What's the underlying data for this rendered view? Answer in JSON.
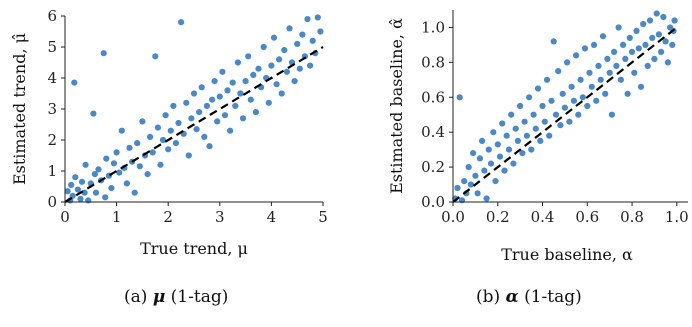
{
  "captions": {
    "a": {
      "tag": "(a)",
      "symbol": "μ",
      "rest": "(1-tag)"
    },
    "b": {
      "tag": "(b)",
      "symbol": "α",
      "rest": "(1-tag)"
    }
  },
  "chart_data": [
    {
      "type": "scatter",
      "xlabel": "True trend, μ",
      "ylabel": "Estimated trend, μ̂",
      "xlim": [
        0,
        5
      ],
      "ylim": [
        0,
        6
      ],
      "xticks": [
        "0",
        "1",
        "2",
        "3",
        "4",
        "5"
      ],
      "yticks": [
        "0",
        "1",
        "2",
        "3",
        "4",
        "5",
        "6"
      ],
      "reference_line": {
        "style": "dashed",
        "color": "#000000",
        "from": [
          0,
          0
        ],
        "to": [
          5,
          5
        ]
      },
      "point_color": "#3b7fc1",
      "series": [
        {
          "points": [
            [
              0.05,
              0.35
            ],
            [
              0.1,
              0.05
            ],
            [
              0.12,
              0.55
            ],
            [
              0.15,
              0.2
            ],
            [
              0.18,
              3.85
            ],
            [
              0.2,
              0.8
            ],
            [
              0.25,
              0.4
            ],
            [
              0.3,
              0.1
            ],
            [
              0.33,
              0.65
            ],
            [
              0.38,
              0.3
            ],
            [
              0.4,
              1.2
            ],
            [
              0.45,
              0.05
            ],
            [
              0.5,
              0.6
            ],
            [
              0.55,
              2.85
            ],
            [
              0.58,
              0.9
            ],
            [
              0.6,
              0.3
            ],
            [
              0.65,
              1.05
            ],
            [
              0.7,
              0.7
            ],
            [
              0.75,
              4.8
            ],
            [
              0.78,
              0.15
            ],
            [
              0.8,
              1.4
            ],
            [
              0.85,
              0.85
            ],
            [
              0.9,
              0.45
            ],
            [
              0.95,
              1.25
            ],
            [
              1.0,
              1.6
            ],
            [
              1.05,
              0.95
            ],
            [
              1.1,
              2.3
            ],
            [
              1.15,
              1.1
            ],
            [
              1.2,
              0.6
            ],
            [
              1.25,
              1.75
            ],
            [
              1.3,
              1.3
            ],
            [
              1.35,
              0.3
            ],
            [
              1.4,
              1.9
            ],
            [
              1.45,
              1.15
            ],
            [
              1.5,
              2.6
            ],
            [
              1.55,
              1.5
            ],
            [
              1.6,
              0.9
            ],
            [
              1.65,
              2.1
            ],
            [
              1.7,
              1.6
            ],
            [
              1.75,
              4.7
            ],
            [
              1.8,
              2.4
            ],
            [
              1.85,
              1.2
            ],
            [
              1.9,
              2.0
            ],
            [
              1.95,
              2.8
            ],
            [
              2.0,
              1.7
            ],
            [
              2.05,
              2.3
            ],
            [
              2.1,
              3.1
            ],
            [
              2.15,
              1.9
            ],
            [
              2.2,
              2.55
            ],
            [
              2.25,
              5.8
            ],
            [
              2.3,
              2.2
            ],
            [
              2.35,
              3.2
            ],
            [
              2.4,
              1.5
            ],
            [
              2.45,
              2.7
            ],
            [
              2.5,
              3.5
            ],
            [
              2.55,
              2.35
            ],
            [
              2.6,
              2.9
            ],
            [
              2.65,
              3.7
            ],
            [
              2.7,
              2.1
            ],
            [
              2.75,
              3.1
            ],
            [
              2.8,
              1.8
            ],
            [
              2.85,
              3.3
            ],
            [
              2.9,
              3.9
            ],
            [
              2.95,
              2.6
            ],
            [
              3.0,
              3.4
            ],
            [
              3.05,
              4.2
            ],
            [
              3.1,
              2.8
            ],
            [
              3.15,
              3.6
            ],
            [
              3.2,
              2.3
            ],
            [
              3.25,
              3.85
            ],
            [
              3.3,
              3.1
            ],
            [
              3.35,
              4.5
            ],
            [
              3.4,
              3.5
            ],
            [
              3.45,
              2.7
            ],
            [
              3.5,
              3.9
            ],
            [
              3.55,
              4.7
            ],
            [
              3.6,
              3.3
            ],
            [
              3.65,
              4.1
            ],
            [
              3.7,
              2.9
            ],
            [
              3.75,
              4.3
            ],
            [
              3.8,
              3.7
            ],
            [
              3.85,
              5.0
            ],
            [
              3.9,
              4.0
            ],
            [
              3.95,
              3.2
            ],
            [
              4.0,
              4.4
            ],
            [
              4.05,
              5.3
            ],
            [
              4.1,
              3.8
            ],
            [
              4.15,
              4.6
            ],
            [
              4.2,
              3.5
            ],
            [
              4.25,
              4.9
            ],
            [
              4.3,
              4.2
            ],
            [
              4.35,
              5.6
            ],
            [
              4.4,
              4.5
            ],
            [
              4.45,
              3.9
            ],
            [
              4.5,
              5.1
            ],
            [
              4.55,
              4.3
            ],
            [
              4.6,
              5.4
            ],
            [
              4.65,
              4.7
            ],
            [
              4.7,
              5.9
            ],
            [
              4.75,
              4.4
            ],
            [
              4.8,
              5.2
            ],
            [
              4.85,
              4.8
            ],
            [
              4.9,
              5.95
            ],
            [
              4.95,
              5.5
            ]
          ]
        }
      ]
    },
    {
      "type": "scatter",
      "xlabel": "True baseline, α",
      "ylabel": "Estimated baseline, α̂",
      "xlim": [
        0,
        1.05
      ],
      "ylim": [
        0,
        1.1
      ],
      "xticks": [
        "0.0",
        "0.2",
        "0.4",
        "0.6",
        "0.8",
        "1.0"
      ],
      "yticks": [
        "0.0",
        "0.2",
        "0.4",
        "0.6",
        "0.8",
        "1.0"
      ],
      "reference_line": {
        "style": "dashed",
        "color": "#000000",
        "from": [
          0,
          0
        ],
        "to": [
          1.0,
          1.0
        ]
      },
      "point_color": "#3b7fc1",
      "series": [
        {
          "points": [
            [
              0.01,
              0.02
            ],
            [
              0.02,
              0.08
            ],
            [
              0.03,
              0.6
            ],
            [
              0.04,
              0.01
            ],
            [
              0.05,
              0.12
            ],
            [
              0.06,
              0.05
            ],
            [
              0.07,
              0.2
            ],
            [
              0.08,
              0.1
            ],
            [
              0.09,
              0.28
            ],
            [
              0.1,
              0.15
            ],
            [
              0.11,
              0.05
            ],
            [
              0.12,
              0.25
            ],
            [
              0.13,
              0.35
            ],
            [
              0.14,
              0.18
            ],
            [
              0.15,
              0.02
            ],
            [
              0.16,
              0.3
            ],
            [
              0.17,
              0.22
            ],
            [
              0.18,
              0.4
            ],
            [
              0.19,
              0.12
            ],
            [
              0.2,
              0.33
            ],
            [
              0.21,
              0.26
            ],
            [
              0.22,
              0.45
            ],
            [
              0.23,
              0.18
            ],
            [
              0.24,
              0.38
            ],
            [
              0.25,
              0.3
            ],
            [
              0.26,
              0.5
            ],
            [
              0.27,
              0.22
            ],
            [
              0.28,
              0.42
            ],
            [
              0.29,
              0.35
            ],
            [
              0.3,
              0.55
            ],
            [
              0.31,
              0.28
            ],
            [
              0.32,
              0.46
            ],
            [
              0.33,
              0.38
            ],
            [
              0.34,
              0.6
            ],
            [
              0.35,
              0.3
            ],
            [
              0.36,
              0.5
            ],
            [
              0.37,
              0.42
            ],
            [
              0.38,
              0.65
            ],
            [
              0.39,
              0.35
            ],
            [
              0.4,
              0.55
            ],
            [
              0.41,
              0.46
            ],
            [
              0.42,
              0.7
            ],
            [
              0.43,
              0.38
            ],
            [
              0.44,
              0.58
            ],
            [
              0.45,
              0.92
            ],
            [
              0.46,
              0.5
            ],
            [
              0.47,
              0.75
            ],
            [
              0.48,
              0.44
            ],
            [
              0.49,
              0.62
            ],
            [
              0.5,
              0.54
            ],
            [
              0.51,
              0.8
            ],
            [
              0.52,
              0.46
            ],
            [
              0.53,
              0.66
            ],
            [
              0.54,
              0.58
            ],
            [
              0.55,
              0.84
            ],
            [
              0.56,
              0.5
            ],
            [
              0.57,
              0.7
            ],
            [
              0.58,
              0.6
            ],
            [
              0.59,
              0.88
            ],
            [
              0.6,
              0.55
            ],
            [
              0.61,
              0.74
            ],
            [
              0.62,
              0.66
            ],
            [
              0.63,
              0.9
            ],
            [
              0.64,
              0.58
            ],
            [
              0.65,
              0.78
            ],
            [
              0.66,
              0.7
            ],
            [
              0.67,
              0.95
            ],
            [
              0.68,
              0.62
            ],
            [
              0.69,
              0.82
            ],
            [
              0.7,
              0.74
            ],
            [
              0.71,
              0.5
            ],
            [
              0.72,
              0.86
            ],
            [
              0.73,
              0.78
            ],
            [
              0.74,
              1.0
            ],
            [
              0.75,
              0.7
            ],
            [
              0.76,
              0.9
            ],
            [
              0.77,
              0.82
            ],
            [
              0.78,
              0.62
            ],
            [
              0.79,
              0.94
            ],
            [
              0.8,
              0.86
            ],
            [
              0.81,
              0.74
            ],
            [
              0.82,
              0.98
            ],
            [
              0.83,
              0.88
            ],
            [
              0.84,
              0.66
            ],
            [
              0.85,
              1.02
            ],
            [
              0.86,
              0.9
            ],
            [
              0.87,
              0.78
            ],
            [
              0.88,
              1.04
            ],
            [
              0.89,
              0.94
            ],
            [
              0.9,
              0.82
            ],
            [
              0.91,
              1.08
            ],
            [
              0.92,
              0.96
            ],
            [
              0.93,
              0.86
            ],
            [
              0.94,
              1.06
            ],
            [
              0.95,
              0.92
            ],
            [
              0.96,
              0.8
            ],
            [
              0.97,
              1.0
            ],
            [
              0.98,
              0.9
            ],
            [
              0.99,
              1.04
            ],
            [
              0.985,
              0.98
            ]
          ]
        }
      ]
    }
  ]
}
